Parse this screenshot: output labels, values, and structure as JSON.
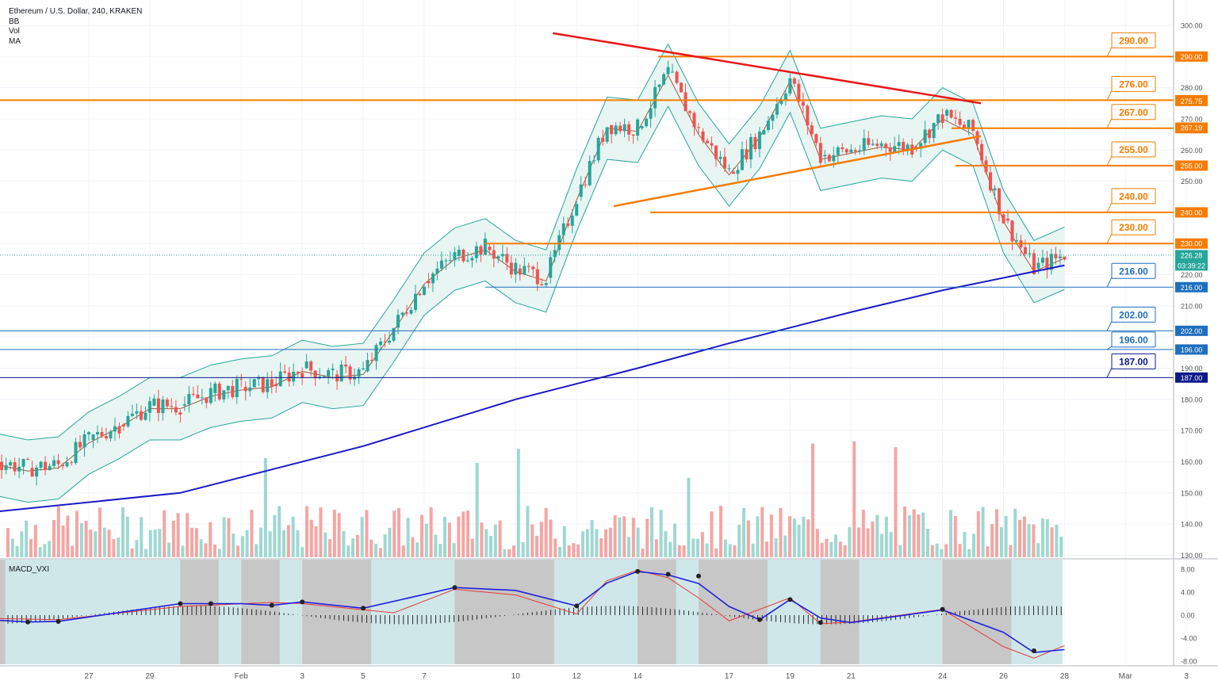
{
  "header": {
    "symbol_line": "Ethereum / U.S. Dollar, 240, KRAKEN",
    "indicators": [
      "BB",
      "Vol",
      "MA"
    ],
    "macd_label": "MACD_VXI"
  },
  "colors": {
    "up": "#26a69a",
    "down": "#ef5350",
    "bb": "#26a69a",
    "bb_fill": "#e9f5f3",
    "bb_mid": "#a05a3c",
    "ma": "#1919c8",
    "orange": "#f57c00",
    "red": "#e81818",
    "blue": "#1e6fbf",
    "navy": "#0d1a8a",
    "macd_band": "#cfe7e8",
    "macd_gray": "#c7c7c7"
  },
  "chart_data": {
    "type": "candlestick",
    "title": "Ethereum / U.S. Dollar, 240, KRAKEN",
    "price_axis": {
      "ylim": [
        125,
        305
      ],
      "ticks": [
        "300.00",
        "290.00",
        "280.00",
        "270.00",
        "260.00",
        "250.00",
        "240.00",
        "230.00",
        "220.00",
        "210.00",
        "200.00",
        "190.00",
        "180.00",
        "170.00",
        "160.00",
        "150.00",
        "140.00",
        "130.00"
      ]
    },
    "macd_axis": {
      "ylim": [
        -9,
        9.5
      ],
      "ticks": [
        "8.00",
        "4.00",
        "0.00",
        "-4.00",
        "-8.00"
      ]
    },
    "x_ticks": [
      "27",
      "29",
      "Feb",
      "3",
      "5",
      "7",
      "10",
      "12",
      "14",
      "17",
      "19",
      "21",
      "24",
      "26",
      "28",
      "Mar",
      "3"
    ],
    "x_tick_dates": [
      "01-27",
      "01-29",
      "02-01",
      "02-03",
      "02-05",
      "02-07",
      "02-10",
      "02-12",
      "02-14",
      "02-17",
      "02-19",
      "02-21",
      "02-24",
      "02-26",
      "02-28",
      "03-01",
      "03-03"
    ],
    "price_path": [
      [
        "01-24",
        160
      ],
      [
        "01-25",
        158
      ],
      [
        "01-26",
        159
      ],
      [
        "01-27",
        167
      ],
      [
        "01-28",
        172
      ],
      [
        "01-29",
        178
      ],
      [
        "01-30",
        178
      ],
      [
        "01-31",
        182
      ],
      [
        "02-01",
        184
      ],
      [
        "02-02",
        185
      ],
      [
        "02-03",
        190
      ],
      [
        "02-04",
        188
      ],
      [
        "02-05",
        189
      ],
      [
        "02-06",
        203
      ],
      [
        "02-07",
        218
      ],
      [
        "02-08",
        226
      ],
      [
        "02-09",
        229
      ],
      [
        "02-10",
        222
      ],
      [
        "02-11",
        219
      ],
      [
        "02-12",
        245
      ],
      [
        "02-13",
        268
      ],
      [
        "02-14",
        267
      ],
      [
        "02-15",
        285
      ],
      [
        "02-16",
        266
      ],
      [
        "02-17",
        253
      ],
      [
        "02-18",
        265
      ],
      [
        "02-19",
        283
      ],
      [
        "02-20",
        258
      ],
      [
        "02-21",
        260
      ],
      [
        "02-22",
        262
      ],
      [
        "02-23",
        261
      ],
      [
        "02-24",
        271
      ],
      [
        "02-25",
        266
      ],
      [
        "02-26",
        238
      ],
      [
        "02-27",
        222
      ],
      [
        "02-28",
        226.28
      ]
    ],
    "current_price": "226.28",
    "countdown": "03:39:22",
    "upper_band_level": "275.75",
    "upper_band_extra": "267.19",
    "horizontal_levels": [
      {
        "label": "290.00",
        "value": 290,
        "color": "orange",
        "kind": "resistance"
      },
      {
        "label": "276.00",
        "value": 276,
        "color": "orange",
        "kind": "resistance"
      },
      {
        "label": "267.00",
        "value": 267,
        "color": "orange",
        "kind": "resistance"
      },
      {
        "label": "255.00",
        "value": 255,
        "color": "orange",
        "kind": "resistance"
      },
      {
        "label": "240.00",
        "value": 240,
        "color": "orange",
        "kind": "resistance"
      },
      {
        "label": "230.00",
        "value": 230,
        "color": "orange",
        "kind": "resistance"
      },
      {
        "label": "216.00",
        "value": 216,
        "color": "blue",
        "kind": "support"
      },
      {
        "label": "202.00",
        "value": 202,
        "color": "blue",
        "kind": "support"
      },
      {
        "label": "196.00",
        "value": 196,
        "color": "blue",
        "kind": "support"
      },
      {
        "label": "187.00",
        "value": 187,
        "color": "navy",
        "kind": "support"
      }
    ],
    "trendlines": [
      {
        "name": "descending",
        "color": "red",
        "points": [
          [
            "02-12",
            297.5
          ],
          [
            "02-25",
            275
          ]
        ]
      },
      {
        "name": "ascending",
        "color": "orange",
        "points": [
          [
            "02-14",
            242
          ],
          [
            "02-25",
            264.5
          ]
        ]
      }
    ],
    "moving_average": [
      [
        "01-24",
        144
      ],
      [
        "01-30",
        150
      ],
      [
        "02-05",
        165
      ],
      [
        "02-10",
        180
      ],
      [
        "02-14",
        190
      ],
      [
        "02-17",
        198
      ],
      [
        "02-21",
        208
      ],
      [
        "02-24",
        215
      ],
      [
        "02-27",
        221
      ],
      [
        "02-28",
        223
      ]
    ],
    "volume": {
      "ylim": [
        125,
        305
      ]
    },
    "macd": {
      "blue": [
        [
          "01-24",
          -0.9
        ],
        [
          "01-25",
          -1.2
        ],
        [
          "01-26",
          -1.1
        ],
        [
          "01-30",
          2
        ],
        [
          "02-01",
          2
        ],
        [
          "02-02",
          1.7
        ],
        [
          "02-03",
          2.3
        ],
        [
          "02-05",
          1.2
        ],
        [
          "02-08",
          4.8
        ],
        [
          "02-10",
          4.3
        ],
        [
          "02-12",
          1.6
        ],
        [
          "02-13",
          5.6
        ],
        [
          "02-14",
          7.6
        ],
        [
          "02-15",
          7
        ],
        [
          "02-16",
          5.5
        ],
        [
          "02-17",
          1.5
        ],
        [
          "02-18",
          -0.8
        ],
        [
          "02-19",
          2.7
        ],
        [
          "02-20",
          -0.5
        ],
        [
          "02-21",
          -1.3
        ],
        [
          "02-24",
          0.9
        ],
        [
          "02-26",
          -3
        ],
        [
          "02-27",
          -6.5
        ],
        [
          "02-28",
          -6
        ]
      ],
      "red": [
        [
          "01-24",
          -0.6
        ],
        [
          "01-26",
          -0.8
        ],
        [
          "01-30",
          1.5
        ],
        [
          "02-02",
          2.2
        ],
        [
          "02-03",
          2
        ],
        [
          "02-06",
          0.4
        ],
        [
          "02-08",
          4.5
        ],
        [
          "02-10",
          3.5
        ],
        [
          "02-12",
          0.2
        ],
        [
          "02-13",
          6
        ],
        [
          "02-14",
          7.8
        ],
        [
          "02-15",
          6.5
        ],
        [
          "02-16",
          3
        ],
        [
          "02-17",
          -1
        ],
        [
          "02-18",
          1
        ],
        [
          "02-19",
          3
        ],
        [
          "02-20",
          -1.5
        ],
        [
          "02-21",
          -1.2
        ],
        [
          "02-24",
          1
        ],
        [
          "02-26",
          -5.5
        ],
        [
          "02-27",
          -7.5
        ],
        [
          "02-28",
          -5.3
        ]
      ],
      "markers": [
        [
          "01-24",
          -1
        ],
        [
          "01-25",
          -1.2
        ],
        [
          "01-26",
          -1.1
        ],
        [
          "01-30",
          2
        ],
        [
          "01-31",
          2
        ],
        [
          "02-02",
          1.7
        ],
        [
          "02-03",
          2.3
        ],
        [
          "02-05",
          1.2
        ],
        [
          "02-08",
          4.8
        ],
        [
          "02-12",
          1.6
        ],
        [
          "02-14",
          7.6
        ],
        [
          "02-15",
          7.1
        ],
        [
          "02-16",
          6.8
        ],
        [
          "02-18",
          -0.8
        ],
        [
          "02-19",
          2.7
        ],
        [
          "02-20",
          -1.3
        ],
        [
          "02-24",
          1
        ],
        [
          "02-27",
          -6.2
        ]
      ]
    }
  }
}
